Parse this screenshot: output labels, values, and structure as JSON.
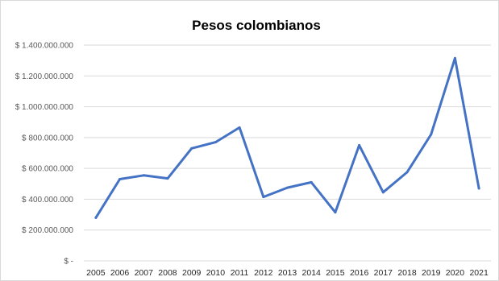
{
  "chart_data": {
    "type": "line",
    "title": "Pesos colombianos",
    "xlabel": "",
    "ylabel": "",
    "categories": [
      "2005",
      "2006",
      "2007",
      "2008",
      "2009",
      "2010",
      "2011",
      "2012",
      "2013",
      "2014",
      "2015",
      "2016",
      "2017",
      "2018",
      "2019",
      "2020",
      "2021"
    ],
    "series": [
      {
        "values": [
          280000000,
          530000000,
          555000000,
          535000000,
          730000000,
          770000000,
          865000000,
          415000000,
          475000000,
          510000000,
          315000000,
          750000000,
          445000000,
          575000000,
          820000000,
          1315000000,
          470000000
        ]
      }
    ],
    "ylim": [
      0,
      1400000000
    ],
    "yticks": [
      0,
      200000000,
      400000000,
      600000000,
      800000000,
      1000000000,
      1200000000,
      1400000000
    ],
    "ytick_labels": [
      "$ -",
      "$ 200.000.000",
      "$ 400.000.000",
      "$ 600.000.000",
      "$ 800.000.000",
      "$ 1.000.000.000",
      "$ 1.200.000.000",
      "$ 1.400.000.000"
    ],
    "grid": true,
    "legend": "none",
    "colors": {
      "line": "#4472c4",
      "grid": "#d9d9d9",
      "title": "#000000",
      "tick_text": "#595959"
    }
  }
}
